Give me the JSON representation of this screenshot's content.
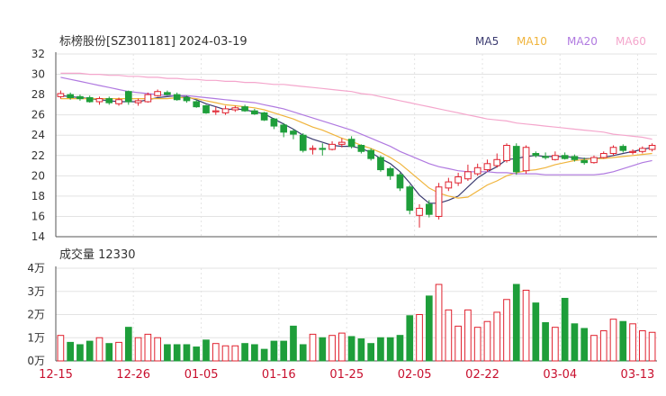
{
  "price_chart": {
    "title": "标榜股份[SZ301181] 2024-03-19",
    "legend": [
      {
        "label": "MA5",
        "color": "#3b3b70"
      },
      {
        "label": "MA10",
        "color": "#f0b43c"
      },
      {
        "label": "MA20",
        "color": "#b079e0"
      },
      {
        "label": "MA60",
        "color": "#f4a6cc"
      }
    ],
    "y_ticks": [
      "32",
      "30",
      "28",
      "26",
      "24",
      "22",
      "20",
      "18",
      "16",
      "14"
    ]
  },
  "volume_chart": {
    "title": "成交量 12330",
    "y_ticks": [
      "4万",
      "3万",
      "2万",
      "1万",
      "0万"
    ]
  },
  "x_ticks": [
    "12-15",
    "12-26",
    "01-05",
    "01-16",
    "01-25",
    "02-05",
    "02-22",
    "03-04",
    "03-13"
  ],
  "colors": {
    "up": "#e0222f",
    "down": "#1e9e3a",
    "grid": "#e3e3e3",
    "tick_x": "#c8102e"
  },
  "chart_data": [
    {
      "type": "candlestick",
      "title": "标榜股份[SZ301181] 2024-03-19",
      "ylim": [
        14,
        32
      ],
      "y_ticks": [
        14,
        16,
        18,
        20,
        22,
        24,
        26,
        28,
        30,
        32
      ],
      "x_tick_labels": [
        "12-15",
        "12-26",
        "01-05",
        "01-16",
        "01-25",
        "02-05",
        "02-22",
        "03-04",
        "03-13"
      ],
      "candles": [
        {
          "o": 27.8,
          "c": 28.1,
          "h": 28.4,
          "l": 27.6
        },
        {
          "o": 28.0,
          "c": 27.7,
          "h": 28.2,
          "l": 27.5
        },
        {
          "o": 27.8,
          "c": 27.6,
          "h": 28.0,
          "l": 27.4
        },
        {
          "o": 27.7,
          "c": 27.3,
          "h": 27.9,
          "l": 27.2
        },
        {
          "o": 27.3,
          "c": 27.6,
          "h": 27.8,
          "l": 27.0
        },
        {
          "o": 27.6,
          "c": 27.2,
          "h": 27.8,
          "l": 27.0
        },
        {
          "o": 27.1,
          "c": 27.5,
          "h": 27.7,
          "l": 26.9
        },
        {
          "o": 28.3,
          "c": 27.3,
          "h": 28.4,
          "l": 27.0
        },
        {
          "o": 27.2,
          "c": 27.4,
          "h": 27.6,
          "l": 26.9
        },
        {
          "o": 27.3,
          "c": 28.0,
          "h": 28.2,
          "l": 27.2
        },
        {
          "o": 27.9,
          "c": 28.3,
          "h": 28.5,
          "l": 27.8
        },
        {
          "o": 28.2,
          "c": 28.0,
          "h": 28.4,
          "l": 27.9
        },
        {
          "o": 28.0,
          "c": 27.5,
          "h": 28.2,
          "l": 27.4
        },
        {
          "o": 27.7,
          "c": 27.4,
          "h": 27.9,
          "l": 27.2
        },
        {
          "o": 27.3,
          "c": 26.8,
          "h": 27.5,
          "l": 26.7
        },
        {
          "o": 26.9,
          "c": 26.2,
          "h": 27.0,
          "l": 26.1
        },
        {
          "o": 26.3,
          "c": 26.4,
          "h": 26.8,
          "l": 26.0
        },
        {
          "o": 26.2,
          "c": 26.6,
          "h": 26.9,
          "l": 26.0
        },
        {
          "o": 26.5,
          "c": 26.7,
          "h": 26.9,
          "l": 26.3
        },
        {
          "o": 26.8,
          "c": 26.4,
          "h": 27.0,
          "l": 26.3
        },
        {
          "o": 26.4,
          "c": 26.1,
          "h": 26.6,
          "l": 26.0
        },
        {
          "o": 26.2,
          "c": 25.5,
          "h": 26.3,
          "l": 25.4
        },
        {
          "o": 25.6,
          "c": 24.9,
          "h": 25.7,
          "l": 24.6
        },
        {
          "o": 25.0,
          "c": 24.3,
          "h": 25.2,
          "l": 23.8
        },
        {
          "o": 24.4,
          "c": 24.1,
          "h": 24.6,
          "l": 23.6
        },
        {
          "o": 24.0,
          "c": 22.5,
          "h": 24.2,
          "l": 22.3
        },
        {
          "o": 22.6,
          "c": 22.7,
          "h": 23.0,
          "l": 22.1
        },
        {
          "o": 22.7,
          "c": 22.6,
          "h": 23.2,
          "l": 22.0
        },
        {
          "o": 22.6,
          "c": 23.1,
          "h": 23.4,
          "l": 22.5
        },
        {
          "o": 23.1,
          "c": 23.3,
          "h": 23.7,
          "l": 22.8
        },
        {
          "o": 23.6,
          "c": 22.9,
          "h": 23.9,
          "l": 22.7
        },
        {
          "o": 23.0,
          "c": 22.4,
          "h": 23.1,
          "l": 22.2
        },
        {
          "o": 22.5,
          "c": 21.7,
          "h": 22.7,
          "l": 21.5
        },
        {
          "o": 21.8,
          "c": 20.6,
          "h": 22.0,
          "l": 20.4
        },
        {
          "o": 20.7,
          "c": 20.0,
          "h": 20.9,
          "l": 19.6
        },
        {
          "o": 20.1,
          "c": 18.8,
          "h": 20.3,
          "l": 18.5
        },
        {
          "o": 18.9,
          "c": 16.6,
          "h": 19.1,
          "l": 16.2
        },
        {
          "o": 16.1,
          "c": 16.8,
          "h": 17.2,
          "l": 14.9
        },
        {
          "o": 17.2,
          "c": 16.2,
          "h": 17.6,
          "l": 15.9
        },
        {
          "o": 16.0,
          "c": 18.9,
          "h": 19.3,
          "l": 15.7
        },
        {
          "o": 18.8,
          "c": 19.4,
          "h": 19.8,
          "l": 18.5
        },
        {
          "o": 19.3,
          "c": 19.9,
          "h": 20.3,
          "l": 19.0
        },
        {
          "o": 19.7,
          "c": 20.4,
          "h": 21.1,
          "l": 19.5
        },
        {
          "o": 20.2,
          "c": 20.8,
          "h": 21.2,
          "l": 20.0
        },
        {
          "o": 20.6,
          "c": 21.2,
          "h": 21.6,
          "l": 20.4
        },
        {
          "o": 21.0,
          "c": 21.6,
          "h": 22.2,
          "l": 20.8
        },
        {
          "o": 21.5,
          "c": 23.0,
          "h": 23.2,
          "l": 21.3
        },
        {
          "o": 22.9,
          "c": 20.4,
          "h": 23.2,
          "l": 20.1
        },
        {
          "o": 20.5,
          "c": 22.8,
          "h": 23.0,
          "l": 20.2
        },
        {
          "o": 22.2,
          "c": 22.0,
          "h": 22.4,
          "l": 21.8
        },
        {
          "o": 21.9,
          "c": 21.8,
          "h": 22.3,
          "l": 21.6
        },
        {
          "o": 21.6,
          "c": 22.0,
          "h": 22.4,
          "l": 21.5
        },
        {
          "o": 22.0,
          "c": 21.7,
          "h": 22.3,
          "l": 21.6
        },
        {
          "o": 21.9,
          "c": 21.6,
          "h": 22.1,
          "l": 21.4
        },
        {
          "o": 21.5,
          "c": 21.3,
          "h": 21.8,
          "l": 21.1
        },
        {
          "o": 21.3,
          "c": 21.8,
          "h": 22.0,
          "l": 21.2
        },
        {
          "o": 21.8,
          "c": 22.2,
          "h": 22.4,
          "l": 21.7
        },
        {
          "o": 22.2,
          "c": 22.8,
          "h": 23.0,
          "l": 22.0
        },
        {
          "o": 22.9,
          "c": 22.5,
          "h": 23.1,
          "l": 22.3
        },
        {
          "o": 22.3,
          "c": 22.4,
          "h": 22.6,
          "l": 22.1
        },
        {
          "o": 22.4,
          "c": 22.7,
          "h": 22.9,
          "l": 22.2
        },
        {
          "o": 22.6,
          "c": 23.0,
          "h": 23.2,
          "l": 22.4
        }
      ],
      "series": [
        {
          "name": "MA5",
          "values": [
            27.9,
            27.8,
            27.7,
            27.6,
            27.5,
            27.4,
            27.3,
            27.3,
            27.3,
            27.5,
            27.7,
            27.8,
            27.9,
            27.8,
            27.5,
            27.1,
            26.8,
            26.5,
            26.6,
            26.5,
            26.3,
            26.1,
            25.6,
            25.1,
            24.6,
            24.0,
            23.6,
            23.3,
            23.0,
            22.9,
            22.9,
            22.7,
            22.3,
            21.7,
            21.2,
            20.4,
            19.3,
            18.1,
            17.3,
            17.3,
            17.6,
            18.0,
            18.9,
            19.8,
            20.4,
            20.9,
            21.6,
            21.7,
            21.9,
            22.0,
            21.9,
            21.9,
            21.9,
            21.8,
            21.7,
            21.7,
            21.8,
            22.0,
            22.2,
            22.4,
            22.6,
            22.8
          ]
        },
        {
          "name": "MA10",
          "values": [
            27.6,
            27.6,
            27.6,
            27.6,
            27.6,
            27.6,
            27.6,
            27.6,
            27.6,
            27.6,
            27.6,
            27.6,
            27.7,
            27.7,
            27.6,
            27.4,
            27.2,
            27.0,
            26.9,
            26.8,
            26.7,
            26.5,
            26.2,
            25.9,
            25.6,
            25.2,
            24.8,
            24.5,
            24.1,
            23.7,
            23.4,
            23.0,
            22.7,
            22.3,
            21.8,
            21.2,
            20.4,
            19.6,
            18.8,
            18.3,
            18.0,
            17.8,
            17.9,
            18.5,
            19.1,
            19.5,
            20.0,
            20.3,
            20.5,
            20.6,
            20.8,
            21.1,
            21.3,
            21.5,
            21.6,
            21.7,
            21.7,
            21.8,
            21.9,
            22.0,
            22.1,
            22.2
          ]
        },
        {
          "name": "MA20",
          "values": [
            29.7,
            29.5,
            29.3,
            29.1,
            28.9,
            28.7,
            28.5,
            28.3,
            28.2,
            28.1,
            28.0,
            27.9,
            27.9,
            27.9,
            27.8,
            27.7,
            27.6,
            27.5,
            27.4,
            27.3,
            27.2,
            27.0,
            26.8,
            26.6,
            26.3,
            26.0,
            25.7,
            25.4,
            25.1,
            24.8,
            24.5,
            24.1,
            23.7,
            23.3,
            22.9,
            22.4,
            22.0,
            21.6,
            21.2,
            20.9,
            20.7,
            20.5,
            20.4,
            20.4,
            20.4,
            20.3,
            20.3,
            20.2,
            20.2,
            20.2,
            20.1,
            20.1,
            20.1,
            20.1,
            20.1,
            20.1,
            20.2,
            20.4,
            20.7,
            21.0,
            21.3,
            21.5
          ]
        },
        {
          "name": "MA60",
          "values": [
            30.1,
            30.1,
            30.1,
            30.0,
            30.0,
            29.9,
            29.9,
            29.8,
            29.8,
            29.7,
            29.7,
            29.6,
            29.6,
            29.5,
            29.5,
            29.4,
            29.4,
            29.3,
            29.3,
            29.2,
            29.2,
            29.1,
            29.0,
            29.0,
            28.9,
            28.8,
            28.7,
            28.6,
            28.5,
            28.4,
            28.3,
            28.1,
            28.0,
            27.8,
            27.6,
            27.4,
            27.2,
            27.0,
            26.8,
            26.6,
            26.4,
            26.2,
            26.0,
            25.8,
            25.6,
            25.5,
            25.4,
            25.2,
            25.1,
            25.0,
            24.9,
            24.8,
            24.7,
            24.6,
            24.5,
            24.4,
            24.3,
            24.1,
            24.0,
            23.9,
            23.8,
            23.6
          ]
        }
      ]
    },
    {
      "type": "bar",
      "title": "成交量 12330",
      "ylim": [
        0,
        40000
      ],
      "y_ticks": [
        "0万",
        "1万",
        "2万",
        "3万",
        "4万"
      ],
      "values": [
        11000,
        8000,
        7000,
        8500,
        10000,
        7500,
        8000,
        14500,
        10000,
        11500,
        10000,
        7000,
        7000,
        7000,
        6000,
        9000,
        7500,
        6500,
        6500,
        7500,
        7000,
        5000,
        8500,
        8500,
        15000,
        7000,
        11500,
        10000,
        11000,
        12000,
        10500,
        9500,
        7500,
        10000,
        10000,
        11000,
        19500,
        20000,
        28000,
        33000,
        22000,
        15000,
        22000,
        14500,
        17000,
        21000,
        26500,
        33000,
        30500,
        25000,
        16500,
        14500,
        27000,
        16000,
        14000,
        11000,
        13000,
        18000,
        17000,
        16000,
        13000,
        12330
      ],
      "up": [
        true,
        false,
        false,
        false,
        true,
        false,
        true,
        false,
        true,
        true,
        true,
        false,
        false,
        false,
        false,
        false,
        true,
        true,
        true,
        false,
        false,
        false,
        false,
        false,
        false,
        false,
        true,
        false,
        true,
        true,
        false,
        false,
        false,
        false,
        false,
        false,
        false,
        true,
        false,
        true,
        true,
        true,
        true,
        true,
        true,
        true,
        true,
        false,
        true,
        false,
        false,
        true,
        false,
        false,
        false,
        true,
        true,
        true,
        false,
        true,
        true,
        true
      ]
    }
  ]
}
